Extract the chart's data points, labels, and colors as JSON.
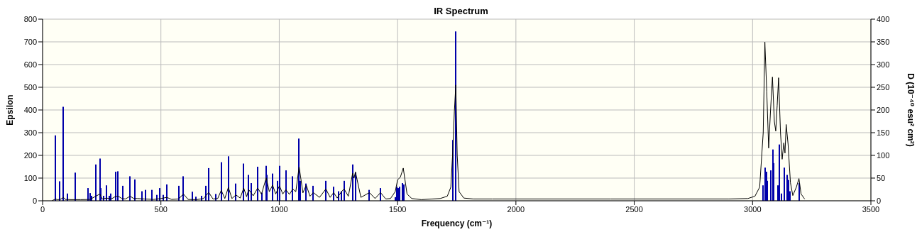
{
  "chart_data": {
    "type": "line",
    "title": "IR Spectrum",
    "xlabel": "Frequency (cm⁻¹)",
    "ylabel": "Epsilon",
    "y2label": "D (10⁻⁴⁰ esu² cm²)",
    "xlim": [
      0,
      3500
    ],
    "xticks": [
      0,
      500,
      1000,
      1500,
      2000,
      2500,
      3000,
      3500
    ],
    "ylim": [
      0,
      800
    ],
    "yticks": [
      0,
      100,
      200,
      300,
      400,
      500,
      600,
      700,
      800
    ],
    "y2lim": [
      0,
      400
    ],
    "y2ticks": [
      0,
      50,
      100,
      150,
      200,
      250,
      300,
      350,
      400
    ],
    "grid": true,
    "legend": false,
    "series": [
      {
        "color": "#000000",
        "axis": "y",
        "x": [
          40,
          54,
          62,
          75,
          88,
          96,
          120,
          160,
          200,
          225,
          242,
          252,
          270,
          290,
          310,
          320,
          335,
          350,
          370,
          385,
          400,
          430,
          470,
          500,
          525,
          545,
          575,
          595,
          615,
          650,
          680,
          702,
          720,
          740,
          755,
          770,
          785,
          800,
          817,
          835,
          850,
          862,
          871,
          890,
          909,
          925,
          945,
          958,
          972,
          985,
          1001,
          1015,
          1028,
          1043,
          1057,
          1070,
          1084,
          1100,
          1114,
          1130,
          1144,
          1170,
          1197,
          1215,
          1230,
          1245,
          1262,
          1274,
          1292,
          1310,
          1316,
          1322,
          1345,
          1381,
          1405,
          1428,
          1450,
          1470,
          1490,
          1500,
          1512,
          1524,
          1540,
          1560,
          1600,
          1680,
          1710,
          1725,
          1733,
          1740,
          1746,
          1752,
          1760,
          1780,
          1820,
          1900,
          2400,
          2900,
          2980,
          3010,
          3030,
          3045,
          3052,
          3060,
          3068,
          3076,
          3084,
          3092,
          3098,
          3104,
          3110,
          3118,
          3125,
          3132,
          3137,
          3142,
          3150,
          3160,
          3170,
          3185,
          3196,
          3205,
          3220
        ],
        "values": [
          0,
          8,
          5,
          6,
          15,
          6,
          5,
          5,
          6,
          20,
          30,
          8,
          12,
          8,
          20,
          20,
          10,
          8,
          20,
          10,
          10,
          8,
          6,
          10,
          15,
          6,
          8,
          30,
          6,
          5,
          10,
          37,
          8,
          10,
          46,
          10,
          59,
          10,
          26,
          12,
          56,
          18,
          49,
          22,
          56,
          29,
          101,
          40,
          69,
          30,
          66,
          30,
          49,
          28,
          52,
          40,
          150,
          35,
          69,
          20,
          36,
          15,
          52,
          15,
          36,
          12,
          39,
          52,
          20,
          121,
          100,
          127,
          15,
          36,
          10,
          36,
          8,
          10,
          40,
          92,
          105,
          144,
          30,
          10,
          5,
          10,
          20,
          60,
          215,
          395,
          510,
          200,
          40,
          12,
          8,
          8,
          8,
          8,
          10,
          20,
          60,
          300,
          699,
          480,
          232,
          400,
          545,
          350,
          307,
          420,
          542,
          300,
          183,
          255,
          210,
          336,
          250,
          80,
          23,
          60,
          98,
          30,
          8
        ]
      },
      {
        "type": "bar",
        "color": "#0000aa",
        "axis": "y2",
        "x": [
          54,
          73,
          88,
          105,
          137,
          191,
          200,
          206,
          224,
          242,
          245,
          257,
          271,
          283,
          289,
          310,
          319,
          340,
          369,
          390,
          420,
          435,
          461,
          482,
          494,
          509,
          524,
          577,
          595,
          633,
          648,
          672,
          690,
          702,
          731,
          755,
          785,
          817,
          850,
          871,
          883,
          909,
          927,
          945,
          948,
          972,
          992,
          1001,
          1028,
          1057,
          1084,
          1090,
          1114,
          1144,
          1197,
          1230,
          1250,
          1262,
          1274,
          1310,
          1322,
          1381,
          1428,
          1490,
          1496,
          1503,
          1509,
          1520,
          1526,
          1733,
          1746,
          3045,
          3054,
          3060,
          3063,
          3078,
          3086,
          3089,
          3107,
          3113,
          3122,
          3134,
          3146,
          3152,
          3158,
          3196
        ],
        "values": [
          144,
          43,
          207,
          16,
          62,
          28,
          17,
          11,
          80,
          93,
          28,
          11,
          34,
          11,
          16,
          64,
          65,
          33,
          54,
          47,
          21,
          24,
          24,
          13,
          28,
          13,
          36,
          33,
          54,
          20,
          9,
          11,
          33,
          72,
          15,
          85,
          98,
          38,
          82,
          57,
          39,
          75,
          18,
          77,
          57,
          60,
          44,
          77,
          67,
          54,
          137,
          44,
          38,
          33,
          44,
          31,
          21,
          21,
          44,
          80,
          62,
          24,
          28,
          8,
          31,
          28,
          31,
          39,
          36,
          134,
          373,
          34,
          73,
          64,
          44,
          67,
          113,
          83,
          34,
          124,
          16,
          73,
          57,
          46,
          21,
          39
        ]
      }
    ]
  }
}
